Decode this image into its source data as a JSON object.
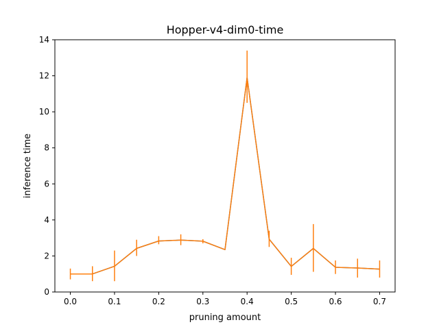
{
  "chart_data": {
    "type": "line",
    "title": "Hopper-v4-dim0-time",
    "xlabel": "pruning amount",
    "ylabel": "inference time",
    "xlim": [
      -0.035,
      0.735
    ],
    "ylim": [
      0,
      14
    ],
    "x_ticks": [
      "0.0",
      "0.1",
      "0.2",
      "0.3",
      "0.4",
      "0.5",
      "0.6",
      "0.7"
    ],
    "y_ticks": [
      "0",
      "2",
      "4",
      "6",
      "8",
      "10",
      "12",
      "14"
    ],
    "grid": false,
    "colors": {
      "line_main": "#ff7f0e",
      "line_under": "#1f77b4",
      "errorbar": "#ff7f0e"
    },
    "series": [
      {
        "x": [
          0.0,
          0.05,
          0.1,
          0.15,
          0.2,
          0.25,
          0.3,
          0.35,
          0.4,
          0.45,
          0.5,
          0.55,
          0.6,
          0.65,
          0.7
        ],
        "y": [
          1.0,
          1.0,
          1.43,
          2.42,
          2.83,
          2.88,
          2.82,
          2.35,
          11.9,
          2.93,
          1.42,
          2.42,
          1.37,
          1.33,
          1.27
        ],
        "err_low": [
          0.3,
          0.4,
          0.83,
          0.42,
          0.18,
          0.28,
          0.12,
          0.0,
          1.4,
          0.43,
          0.47,
          1.3,
          0.37,
          0.53,
          0.47
        ],
        "err_high": [
          0.3,
          0.43,
          0.87,
          0.48,
          0.27,
          0.32,
          0.11,
          0.0,
          1.5,
          0.47,
          0.48,
          1.35,
          0.38,
          0.52,
          0.48
        ]
      }
    ]
  }
}
